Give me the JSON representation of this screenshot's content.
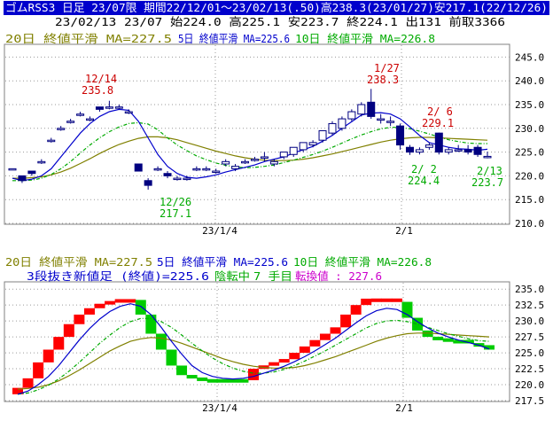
{
  "header": {
    "line1": "ゴムRSS3 日足 23/07限 期間22/12/01～23/02/13(.50)高238.3(23/01/27)安217.1(22/12/26)",
    "line2": "23/02/13 23/07 始224.0 高225.1 安223.7 終224.1 出131 前取3366"
  },
  "colors": {
    "background": "#ffffff",
    "title_bar": "#0000cc",
    "grid": "#9a9a9a",
    "candle_up": "#ffffff",
    "candle_down": "#000080",
    "ma20": "#808000",
    "ma5": "#0000cc",
    "ma10": "#00aa00",
    "brick_up": "#ff0000",
    "brick_down": "#00cc00",
    "annot_red": "#cc0000",
    "annot_green": "#00aa00"
  },
  "top_legend": {
    "ma20": "20日 終値平滑 MA=227.5",
    "ma5": "5日 終値平滑 MA=225.6",
    "ma10": "10日 終値平滑 MA=226.8"
  },
  "bottom_legend": {
    "ma20": "20日 終値平滑 MA=227.5",
    "ma5": "5日 終値平滑 MA=225.6",
    "ma10": "10日 終値平滑 MA=226.8",
    "line2_a": "3段抜き新値足 (終値)=225.6",
    "line2_b": "陰転中",
    "line2_c": "7 手目",
    "line2_d": "転換値 : 227.6"
  },
  "annotations": {
    "a1_date": "12/14",
    "a1_val": "235.8",
    "a2_date": "12/26",
    "a2_val": "217.1",
    "a3_date": "1/27",
    "a3_val": "238.3",
    "a4_date": "2/ 2",
    "a4_val": "224.4",
    "a5_date": "2/ 6",
    "a5_val": "229.1",
    "a6_date": "2/13",
    "a6_val": "223.7"
  },
  "chart_data": [
    {
      "type": "candlestick",
      "title": "ゴムRSS3 日足 23/07限",
      "xlabels": [
        "23/1/4",
        "2/1"
      ],
      "ylim": [
        210,
        247.5
      ],
      "yticks": [
        "210.0",
        "215.0",
        "220.0",
        "225.0",
        "230.0",
        "235.0",
        "240.0",
        "245.0"
      ],
      "candles": [
        {
          "o": 221.5,
          "h": 221.5,
          "l": 221.5,
          "c": 221.5
        },
        {
          "o": 220.0,
          "h": 220.0,
          "l": 218.5,
          "c": 219.0
        },
        {
          "o": 221.0,
          "h": 221.0,
          "l": 220.0,
          "c": 220.5
        },
        {
          "o": 223.0,
          "h": 223.5,
          "l": 222.5,
          "c": 223.0
        },
        {
          "o": 227.5,
          "h": 228.0,
          "l": 227.0,
          "c": 227.5
        },
        {
          "o": 230.0,
          "h": 230.5,
          "l": 229.5,
          "c": 230.0
        },
        {
          "o": 231.5,
          "h": 232.0,
          "l": 231.0,
          "c": 231.5
        },
        {
          "o": 233.0,
          "h": 233.5,
          "l": 232.5,
          "c": 233.0
        },
        {
          "o": 232.0,
          "h": 232.5,
          "l": 231.5,
          "c": 232.0
        },
        {
          "o": 234.5,
          "h": 234.5,
          "l": 233.5,
          "c": 234.0
        },
        {
          "o": 234.5,
          "h": 235.8,
          "l": 234.0,
          "c": 234.5
        },
        {
          "o": 234.5,
          "h": 235.0,
          "l": 234.0,
          "c": 234.5
        },
        {
          "o": 233.5,
          "h": 234.0,
          "l": 233.0,
          "c": 233.5
        },
        {
          "o": 222.5,
          "h": 222.5,
          "l": 221.0,
          "c": 221.0
        },
        {
          "o": 219.0,
          "h": 219.5,
          "l": 217.1,
          "c": 218.0
        },
        {
          "o": 221.5,
          "h": 222.0,
          "l": 221.0,
          "c": 221.5
        },
        {
          "o": 220.5,
          "h": 221.0,
          "l": 219.5,
          "c": 220.0
        },
        {
          "o": 219.5,
          "h": 220.0,
          "l": 219.0,
          "c": 219.5
        },
        {
          "o": 219.5,
          "h": 220.0,
          "l": 219.0,
          "c": 219.5
        },
        {
          "o": 221.5,
          "h": 222.0,
          "l": 221.0,
          "c": 221.5
        },
        {
          "o": 221.5,
          "h": 222.0,
          "l": 221.0,
          "c": 221.5
        },
        {
          "o": 221.0,
          "h": 221.5,
          "l": 220.5,
          "c": 221.0
        },
        {
          "o": 222.5,
          "h": 223.5,
          "l": 222.0,
          "c": 223.0
        },
        {
          "o": 221.5,
          "h": 222.5,
          "l": 221.0,
          "c": 222.0
        },
        {
          "o": 223.0,
          "h": 223.5,
          "l": 222.5,
          "c": 223.0
        },
        {
          "o": 223.5,
          "h": 224.0,
          "l": 223.0,
          "c": 223.5
        },
        {
          "o": 224.0,
          "h": 225.0,
          "l": 223.0,
          "c": 224.0
        },
        {
          "o": 222.5,
          "h": 223.5,
          "l": 222.0,
          "c": 223.0
        },
        {
          "o": 224.0,
          "h": 225.0,
          "l": 223.5,
          "c": 225.0
        },
        {
          "o": 224.5,
          "h": 226.0,
          "l": 224.0,
          "c": 226.0
        },
        {
          "o": 225.5,
          "h": 227.0,
          "l": 225.0,
          "c": 227.0
        },
        {
          "o": 226.5,
          "h": 227.5,
          "l": 226.0,
          "c": 227.0
        },
        {
          "o": 227.5,
          "h": 229.5,
          "l": 227.0,
          "c": 229.5
        },
        {
          "o": 229.0,
          "h": 231.5,
          "l": 228.5,
          "c": 231.0
        },
        {
          "o": 230.0,
          "h": 232.5,
          "l": 229.5,
          "c": 232.0
        },
        {
          "o": 232.0,
          "h": 234.0,
          "l": 231.5,
          "c": 233.5
        },
        {
          "o": 233.0,
          "h": 235.5,
          "l": 232.5,
          "c": 235.0
        },
        {
          "o": 235.5,
          "h": 238.3,
          "l": 232.0,
          "c": 232.5
        },
        {
          "o": 232.0,
          "h": 233.0,
          "l": 231.0,
          "c": 232.0
        },
        {
          "o": 231.5,
          "h": 232.5,
          "l": 230.5,
          "c": 231.5
        },
        {
          "o": 230.5,
          "h": 231.0,
          "l": 225.5,
          "c": 226.5
        },
        {
          "o": 226.0,
          "h": 226.5,
          "l": 224.4,
          "c": 225.0
        },
        {
          "o": 225.0,
          "h": 226.0,
          "l": 224.5,
          "c": 225.5
        },
        {
          "o": 226.0,
          "h": 227.0,
          "l": 225.5,
          "c": 226.5
        },
        {
          "o": 229.0,
          "h": 229.1,
          "l": 224.5,
          "c": 225.0
        },
        {
          "o": 225.0,
          "h": 226.0,
          "l": 224.5,
          "c": 225.5
        },
        {
          "o": 225.5,
          "h": 226.5,
          "l": 225.0,
          "c": 225.5
        },
        {
          "o": 225.5,
          "h": 226.5,
          "l": 224.5,
          "c": 225.0
        },
        {
          "o": 226.0,
          "h": 226.5,
          "l": 224.0,
          "c": 224.5
        },
        {
          "o": 224.0,
          "h": 225.1,
          "l": 223.7,
          "c": 224.1
        }
      ],
      "ma5": [
        219.5,
        219.0,
        219.3,
        220.0,
        221.5,
        224.0,
        226.5,
        229.0,
        231.0,
        232.5,
        233.5,
        234.0,
        233.8,
        231.5,
        228.0,
        224.5,
        222.0,
        220.5,
        219.7,
        219.5,
        219.8,
        220.2,
        220.8,
        221.3,
        221.8,
        222.3,
        223.0,
        223.5,
        224.0,
        224.8,
        225.5,
        226.2,
        227.3,
        228.5,
        230.0,
        231.4,
        232.8,
        233.2,
        233.3,
        233.0,
        232.0,
        230.3,
        228.5,
        227.0,
        226.5,
        226.0,
        225.7,
        225.6,
        225.4,
        225.6
      ],
      "ma10": [
        219.0,
        219.0,
        219.1,
        219.5,
        220.3,
        221.5,
        223.0,
        224.8,
        226.5,
        228.0,
        229.3,
        230.3,
        231.0,
        231.2,
        230.9,
        229.7,
        228.0,
        226.5,
        225.3,
        224.2,
        223.4,
        222.7,
        222.2,
        221.9,
        221.7,
        221.8,
        222.0,
        222.3,
        222.8,
        223.3,
        223.9,
        224.5,
        225.2,
        226.0,
        226.9,
        227.8,
        228.6,
        229.3,
        229.9,
        230.2,
        230.2,
        229.9,
        229.4,
        228.8,
        228.2,
        227.6,
        227.2,
        226.9,
        226.8,
        226.8
      ],
      "ma20": [
        219.5,
        219.5,
        219.6,
        219.8,
        220.2,
        220.8,
        221.6,
        222.6,
        223.6,
        224.7,
        225.7,
        226.6,
        227.3,
        227.9,
        228.2,
        228.2,
        228.0,
        227.6,
        227.0,
        226.4,
        225.8,
        225.2,
        224.7,
        224.2,
        223.8,
        223.5,
        223.3,
        223.2,
        223.2,
        223.3,
        223.5,
        223.8,
        224.2,
        224.6,
        225.1,
        225.6,
        226.1,
        226.6,
        227.1,
        227.5,
        227.8,
        228.0,
        228.1,
        228.1,
        228.0,
        227.9,
        227.8,
        227.7,
        227.6,
        227.5
      ]
    },
    {
      "type": "three-line-break",
      "title": "3段抜き新値足 (終値)",
      "xlabels": [
        "23/1/4",
        "2/1"
      ],
      "ylim": [
        217.5,
        236.0
      ],
      "yticks": [
        "217.5",
        "220.0",
        "222.5",
        "225.0",
        "227.5",
        "230.0",
        "232.5",
        "235.0"
      ],
      "bricks": [
        {
          "d": "up",
          "lo": 218.5,
          "hi": 219.5
        },
        {
          "d": "up",
          "lo": 219.5,
          "hi": 221.0
        },
        {
          "d": "up",
          "lo": 221.0,
          "hi": 223.5
        },
        {
          "d": "up",
          "lo": 223.5,
          "hi": 225.5
        },
        {
          "d": "up",
          "lo": 225.5,
          "hi": 227.5
        },
        {
          "d": "up",
          "lo": 227.5,
          "hi": 229.5
        },
        {
          "d": "up",
          "lo": 229.5,
          "hi": 231.0
        },
        {
          "d": "up",
          "lo": 231.0,
          "hi": 232.0
        },
        {
          "d": "up",
          "lo": 232.0,
          "hi": 232.7
        },
        {
          "d": "up",
          "lo": 232.7,
          "hi": 233.0
        },
        {
          "d": "up",
          "lo": 233.0,
          "hi": 233.3
        },
        {
          "d": "up",
          "lo": 233.0,
          "hi": 233.3
        },
        {
          "d": "down",
          "lo": 231.0,
          "hi": 233.3
        },
        {
          "d": "down",
          "lo": 228.0,
          "hi": 231.0
        },
        {
          "d": "down",
          "lo": 225.5,
          "hi": 228.0
        },
        {
          "d": "down",
          "lo": 223.0,
          "hi": 225.5
        },
        {
          "d": "down",
          "lo": 221.5,
          "hi": 223.0
        },
        {
          "d": "down",
          "lo": 221.0,
          "hi": 221.5
        },
        {
          "d": "down",
          "lo": 220.7,
          "hi": 221.0
        },
        {
          "d": "down",
          "lo": 220.5,
          "hi": 220.7
        },
        {
          "d": "down",
          "lo": 220.5,
          "hi": 220.7
        },
        {
          "d": "down",
          "lo": 220.5,
          "hi": 220.7
        },
        {
          "d": "down",
          "lo": 220.5,
          "hi": 220.7
        },
        {
          "d": "up",
          "lo": 220.7,
          "hi": 222.5
        },
        {
          "d": "up",
          "lo": 222.5,
          "hi": 223.0
        },
        {
          "d": "up",
          "lo": 223.0,
          "hi": 223.5
        },
        {
          "d": "up",
          "lo": 223.5,
          "hi": 224.0
        },
        {
          "d": "up",
          "lo": 224.0,
          "hi": 225.0
        },
        {
          "d": "up",
          "lo": 225.0,
          "hi": 226.0
        },
        {
          "d": "up",
          "lo": 226.0,
          "hi": 227.0
        },
        {
          "d": "up",
          "lo": 227.0,
          "hi": 228.0
        },
        {
          "d": "up",
          "lo": 228.0,
          "hi": 229.0
        },
        {
          "d": "up",
          "lo": 229.0,
          "hi": 231.0
        },
        {
          "d": "up",
          "lo": 231.0,
          "hi": 232.5
        },
        {
          "d": "up",
          "lo": 232.5,
          "hi": 233.5
        },
        {
          "d": "up",
          "lo": 233.0,
          "hi": 233.5
        },
        {
          "d": "up",
          "lo": 233.0,
          "hi": 233.5
        },
        {
          "d": "up",
          "lo": 233.0,
          "hi": 233.5
        },
        {
          "d": "down",
          "lo": 230.5,
          "hi": 233.0
        },
        {
          "d": "down",
          "lo": 228.5,
          "hi": 230.5
        },
        {
          "d": "down",
          "lo": 227.5,
          "hi": 228.5
        },
        {
          "d": "down",
          "lo": 227.0,
          "hi": 227.5
        },
        {
          "d": "down",
          "lo": 226.8,
          "hi": 227.2
        },
        {
          "d": "down",
          "lo": 226.5,
          "hi": 227.0
        },
        {
          "d": "down",
          "lo": 226.5,
          "hi": 227.0
        },
        {
          "d": "down",
          "lo": 226.0,
          "hi": 226.5
        },
        {
          "d": "down",
          "lo": 225.5,
          "hi": 226.2
        }
      ],
      "ma5": [
        218.5,
        219.0,
        220.0,
        221.3,
        223.0,
        225.0,
        227.0,
        228.8,
        230.3,
        231.5,
        232.3,
        232.7,
        232.3,
        231.0,
        229.0,
        226.8,
        224.8,
        223.0,
        221.9,
        221.3,
        221.0,
        220.9,
        221.0,
        221.3,
        221.8,
        222.3,
        222.9,
        223.6,
        224.4,
        225.3,
        226.3,
        227.3,
        228.5,
        229.7,
        230.8,
        231.6,
        232.0,
        231.8,
        231.0,
        229.9,
        228.9,
        228.1,
        227.5,
        227.0,
        226.6,
        226.2,
        225.6
      ],
      "ma10": [
        218.5,
        218.7,
        219.2,
        219.9,
        220.9,
        222.1,
        223.5,
        225.0,
        226.5,
        227.8,
        229.0,
        229.9,
        230.4,
        230.4,
        229.9,
        229.0,
        227.8,
        226.5,
        225.3,
        224.2,
        223.3,
        222.6,
        222.1,
        221.8,
        221.8,
        222.0,
        222.4,
        223.0,
        223.7,
        224.5,
        225.3,
        226.2,
        227.1,
        228.0,
        228.9,
        229.6,
        230.0,
        230.1,
        229.9,
        229.5,
        229.0,
        228.5,
        228.0,
        227.6,
        227.2,
        226.9,
        226.8
      ],
      "ma20": [
        219.3,
        219.4,
        219.6,
        220.0,
        220.6,
        221.4,
        222.3,
        223.3,
        224.3,
        225.3,
        226.1,
        226.8,
        227.2,
        227.4,
        227.3,
        227.0,
        226.5,
        225.9,
        225.3,
        224.7,
        224.1,
        223.6,
        223.2,
        222.9,
        222.7,
        222.6,
        222.6,
        222.7,
        223.0,
        223.4,
        223.9,
        224.4,
        225.0,
        225.6,
        226.2,
        226.8,
        227.3,
        227.7,
        228.0,
        228.1,
        228.1,
        228.0,
        227.9,
        227.8,
        227.7,
        227.6,
        227.5
      ]
    }
  ]
}
